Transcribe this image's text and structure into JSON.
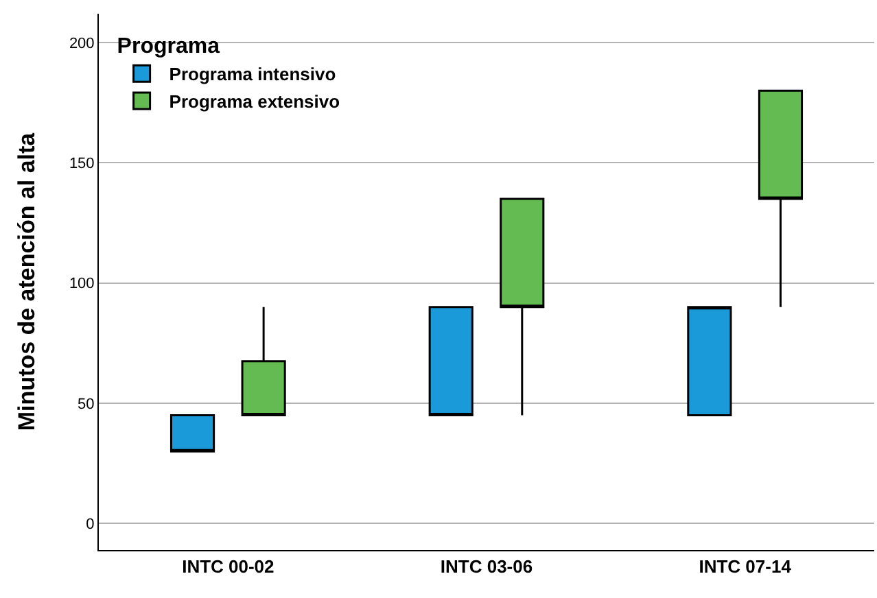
{
  "chart_data": {
    "type": "box",
    "ylabel": "Minutos de atención al alta",
    "legend_title": "Programa",
    "categories": [
      "INTC 00-02",
      "INTC 03-06",
      "INTC 07-14"
    ],
    "series": [
      {
        "name": "Programa intensivo",
        "color": "#1a9ad9",
        "boxes": [
          {
            "low": 30,
            "q1": 30,
            "median": 30,
            "q3": 45,
            "high": 45
          },
          {
            "low": 45,
            "q1": 45,
            "median": 45,
            "q3": 90,
            "high": 90
          },
          {
            "low": 45,
            "q1": 45,
            "median": 90,
            "q3": 90,
            "high": 90
          }
        ]
      },
      {
        "name": "Programa extensivo",
        "color": "#63bb51",
        "boxes": [
          {
            "low": 45,
            "q1": 45,
            "median": 45,
            "q3": 67.5,
            "high": 90
          },
          {
            "low": 45,
            "q1": 90,
            "median": 90,
            "q3": 135,
            "high": 135
          },
          {
            "low": 90,
            "q1": 135,
            "median": 135,
            "q3": 180,
            "high": 180
          }
        ]
      }
    ],
    "ylim": [
      -11,
      212
    ],
    "yticks": [
      0,
      50,
      100,
      150,
      200
    ],
    "grid": "y",
    "legend": "top left"
  }
}
